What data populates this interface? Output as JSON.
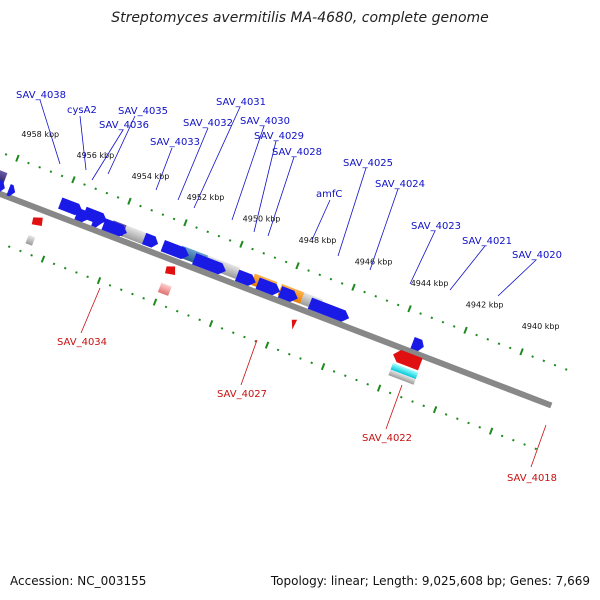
{
  "title": "Streptomyces avermitilis MA-4680, complete genome",
  "accession": "Accession: NC_003155",
  "summary": "Topology: linear; Length: 9,025,608 bp; Genes: 7,669",
  "colors": {
    "forward_gene": "#1a1ae6",
    "backbone": "#888888",
    "tick": "#1f8a1f",
    "label_above": "#1010c8",
    "label_below": "#c81010"
  },
  "kbp_ticks": [
    "4958 kbp",
    "4956 kbp",
    "4954 kbp",
    "4952 kbp",
    "4950 kbp",
    "4948 kbp",
    "4946 kbp",
    "4944 kbp",
    "4942 kbp",
    "4940 kbp"
  ],
  "labels_above": [
    "SAV_4038",
    "cysA2",
    "SAV_4035",
    "SAV_4036",
    "SAV_4033",
    "SAV_4032",
    "SAV_4031",
    "SAV_4030",
    "SAV_4029",
    "SAV_4028",
    "amfC",
    "SAV_4025",
    "SAV_4024",
    "SAV_4023",
    "SAV_4021",
    "SAV_4020"
  ],
  "labels_below": [
    "SAV_4034",
    "SAV_4027",
    "SAV_4022",
    "SAV_4018"
  ]
}
